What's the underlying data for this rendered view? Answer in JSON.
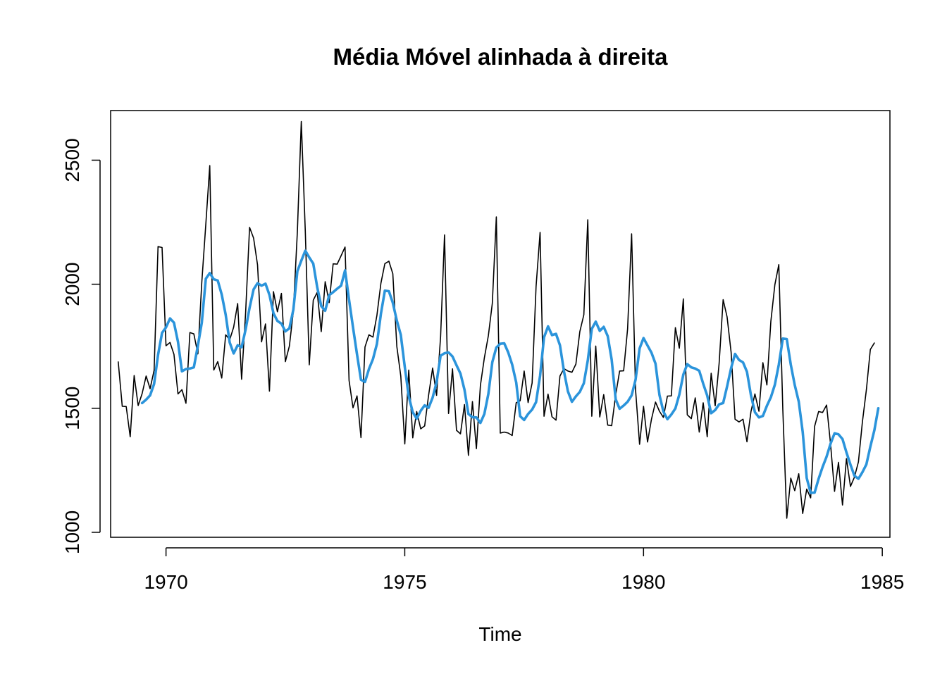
{
  "chart_data": {
    "type": "line",
    "title": "Média Móvel alinhada à direita",
    "xlabel": "Time",
    "ylabel": "",
    "xlim": [
      1968.84,
      1985.16
    ],
    "ylim": [
      980,
      2700
    ],
    "x_ticks": [
      1970,
      1975,
      1980,
      1985
    ],
    "y_ticks": [
      1000,
      1500,
      2000,
      2500
    ],
    "grid": false,
    "legend": "none",
    "start": 1969.0,
    "frequency": 12,
    "series": [
      {
        "color": "#000000",
        "values": [
          1687,
          1508,
          1507,
          1385,
          1632,
          1511,
          1559,
          1630,
          1579,
          1653,
          2152,
          2148,
          1752,
          1765,
          1717,
          1558,
          1575,
          1520,
          1805,
          1800,
          1719,
          2008,
          2242,
          2478,
          1654,
          1688,
          1622,
          1796,
          1776,
          1827,
          1922,
          1617,
          1886,
          2229,
          2186,
          2078,
          1768,
          1840,
          1569,
          1970,
          1889,
          1963,
          1688,
          1751,
          1890,
          2210,
          2656,
          2212,
          1675,
          1936,
          1967,
          1809,
          2010,
          1926,
          2082,
          2081,
          2115,
          2150,
          1612,
          1502,
          1550,
          1382,
          1747,
          1796,
          1787,
          1874,
          2004,
          2083,
          2093,
          2042,
          1749,
          1630,
          1356,
          1654,
          1381,
          1487,
          1417,
          1429,
          1553,
          1662,
          1552,
          1789,
          2199,
          1479,
          1659,
          1411,
          1397,
          1515,
          1310,
          1527,
          1337,
          1592,
          1703,
          1793,
          1923,
          2271,
          1400,
          1404,
          1400,
          1390,
          1522,
          1530,
          1650,
          1523,
          1602,
          1991,
          2209,
          1468,
          1557,
          1466,
          1452,
          1630,
          1660,
          1650,
          1645,
          1678,
          1809,
          1877,
          2260,
          1468,
          1751,
          1465,
          1555,
          1432,
          1430,
          1554,
          1650,
          1651,
          1820,
          2203,
          1574,
          1355,
          1508,
          1364,
          1456,
          1525,
          1488,
          1463,
          1549,
          1550,
          1825,
          1742,
          1941,
          1474,
          1458,
          1542,
          1404,
          1522,
          1385,
          1641,
          1510,
          1681,
          1938,
          1868,
          1726,
          1456,
          1445,
          1456,
          1365,
          1487,
          1558,
          1488,
          1684,
          1594,
          1850,
          1998,
          2079,
          1494,
          1057,
          1218,
          1168,
          1236,
          1076,
          1174,
          1139,
          1427,
          1487,
          1483,
          1513,
          1357,
          1165,
          1282,
          1110,
          1297,
          1185,
          1222,
          1284,
          1444,
          1575,
          1737,
          1763
        ]
      },
      {
        "color": "#2B94DB",
        "values": [
          null,
          null,
          null,
          null,
          null,
          null,
          1521,
          1535,
          1552,
          1598,
          1715,
          1804,
          1826,
          1862,
          1845,
          1768,
          1649,
          1658,
          1660,
          1665,
          1752,
          1845,
          2022,
          2045,
          2020,
          2015,
          1958,
          1877,
          1765,
          1721,
          1754,
          1746,
          1818,
          1905,
          1979,
          2004,
          1994,
          2002,
          1957,
          1883,
          1852,
          1841,
          1810,
          1822,
          1897,
          2052,
          2095,
          2135,
          2108,
          2083,
          1988,
          1912,
          1893,
          1956,
          1968,
          1982,
          1994,
          2056,
          1937,
          1826,
          1717,
          1615,
          1606,
          1658,
          1698,
          1759,
          1881,
          1974,
          1972,
          1925,
          1853,
          1796,
          1666,
          1548,
          1484,
          1458,
          1490,
          1512,
          1502,
          1543,
          1605,
          1712,
          1722,
          1725,
          1709,
          1673,
          1640,
          1575,
          1477,
          1464,
          1463,
          1441,
          1477,
          1558,
          1686,
          1745,
          1760,
          1762,
          1725,
          1676,
          1604,
          1468,
          1453,
          1477,
          1495,
          1525,
          1631,
          1786,
          1830,
          1795,
          1800,
          1754,
          1649,
          1568,
          1526,
          1548,
          1566,
          1601,
          1693,
          1820,
          1849,
          1812,
          1828,
          1791,
          1696,
          1536,
          1498,
          1511,
          1526,
          1552,
          1615,
          1741,
          1783,
          1753,
          1724,
          1680,
          1554,
          1487,
          1456,
          1475,
          1499,
          1555,
          1636,
          1678,
          1665,
          1660,
          1651,
          1599,
          1551,
          1480,
          1493,
          1516,
          1521,
          1588,
          1662,
          1719,
          1695,
          1685,
          1647,
          1552,
          1484,
          1463,
          1469,
          1510,
          1544,
          1595,
          1676,
          1781,
          1779,
          1676,
          1594,
          1527,
          1405,
          1219,
          1159,
          1160,
          1216,
          1263,
          1305,
          1357,
          1399,
          1395,
          1376,
          1322,
          1273,
          1228,
          1216,
          1242,
          1274,
          1345,
          1411,
          1500
        ]
      }
    ]
  }
}
